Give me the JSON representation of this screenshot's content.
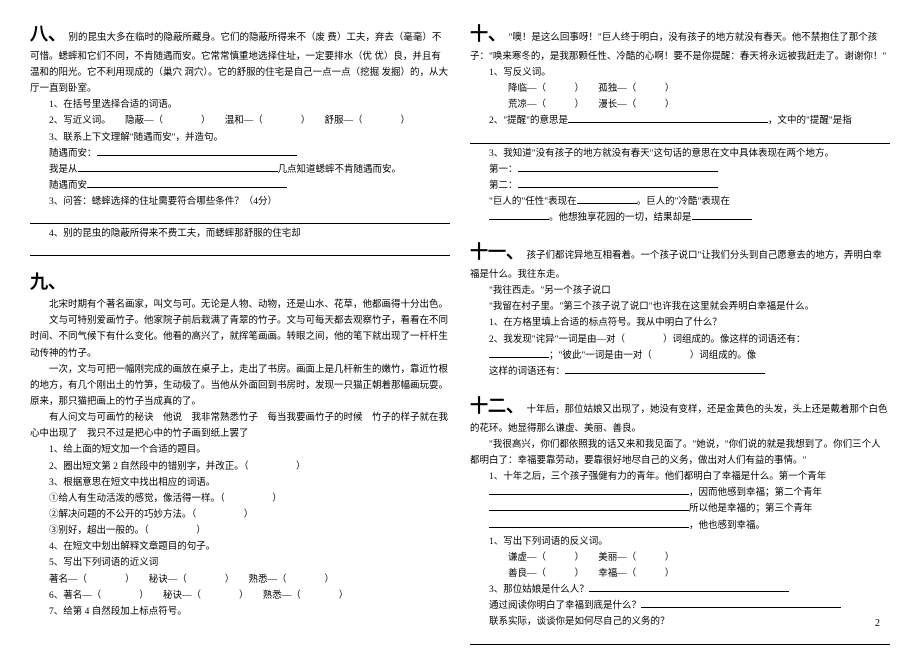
{
  "left": {
    "s8": {
      "num": "八、",
      "para": "别的昆虫大多在临时的隐蔽所藏身。它们的隐蔽所得来不（废 费）工夫，弃去（毫毫）不可惜。蟋蟀和它们不同，不肯随遇而安。它常常慎重地选择住址，一定要排水（优 优）良，并且有温和的阳光。它不利用现成的（巢穴 洞穴）。它的舒服的住宅是自己一点一点（挖掘 发掘）的，从大厅一直到卧室。",
      "q1": "1、在括号里选择合适的词语。",
      "q2": "2、写近义词。　　隐蔽—（　　　　）　　温和—（　　　　）　　舒服—（　　　　）",
      "q3": "3、联系上下文理解\"随遇而安\"，并造句。",
      "q3a": "随遇而安：",
      "q3b": "我是从",
      "q3c": "几点知道蟋蟀不肯随遇而安。",
      "q3d": "随遇而安",
      "q4": "3、问答：蟋蟀选择的住址需要符合哪些条件？（4分）",
      "q5": "4、别的昆虫的隐蔽所得来不费工夫，而蟋蟀那舒服的住宅却"
    },
    "s9": {
      "num": "九、",
      "p1": "北宋时期有个著名画家，叫文与可。无论是人物、动物，还是山水、花草，他都画得十分出色。",
      "p2": "文与可特别爱画竹子。他家院子前后栽满了青翠的竹子。文与可每天都去观察竹子，看看在不同时间、不同气候下有什么变化。他看的高兴了，就挥笔画画。转眼之间，他的笔下就出现了一杆杆生动传神的竹子。",
      "p3": "一次，文与可把一幅刚完成的画放在桌子上，走出了书房。画面上是几杆新生的嫩竹，靠近竹根的地方，有几个刚出土的竹笋，生动极了。当他从外面回到书房时，发现一只猫正朝着那幅画玩耍。原来，那只猫把画上的竹子当成真的了。",
      "p4": "有人问文与可画竹的秘诀　他说　我非常熟悉竹子　每当我要画竹子的时候　竹子的样子就在我心中出现了　我只不过是把心中的竹子画到纸上罢了",
      "q1": "1、给上面的短文加一个合适的题目。",
      "q2": "2、圈出短文第 2 自然段中的错别字，并改正。（",
      "q3": "3、根据意思在短文中找出相应的词语。",
      "q3a": "①给人有生动活泼的感觉，像活得一样。（",
      "q3b": "②解决问题的不公开的巧妙方法。（",
      "q3c": "③别好，超出一般的。（",
      "q4": "4、在短文中划出解释文章题目的句子。",
      "q5": "5、写出下列词语的近义词",
      "q5a": "著名—（　　　　）　　秘诀—（　　　　）　　熟悉—（　　　　）",
      "q6": "6、著名—（　　　　）　　秘诀—（　　　　）　　熟悉—（　　　　）",
      "q7": "7、给第 4 自然段加上标点符号。"
    }
  },
  "right": {
    "s10": {
      "num": "十、",
      "para": "\"噢！是这么回事呀！\"巨人终于明白，没有孩子的地方就没有春天。他不禁抱住了那个孩子：\"唤来寒冬的，是我那颗任性、冷酷的心啊！要不是你提醒：春天将永远被我赶走了。谢谢你！\"",
      "q1": "1、写反义词。",
      "q1a": "降临—（　　　）　　孤独—（　　　）",
      "q1b": "荒凉—（　　　）　　漫长—（　　　）",
      "q2": "2、\"提醒\"的意思是",
      "q2b": "，文中的\"提醒\"是指",
      "q3": "3、我知道\"没有孩子的地方就没有春天\"这句话的意思在文中具体表现在两个地方。",
      "q3a": "第一：",
      "q3b": "第二：",
      "q4": "\"巨人的\"任性\"表现在",
      "q4b": "。巨人的\"冷酷\"表现在",
      "q4c": "。他想独享花园的一切，结果却是"
    },
    "s11": {
      "num": "十一、",
      "para": "孩子们都诧异地互相看着。一个孩子说口\"让我们分头到自己愿意去的地方，弄明白幸福是什么。我往东走。",
      "p2": "\"我往西走。\"另一个孩子说口",
      "p3": "\"我留在村子里。\"第三个孩子说了说口\"也许我在这里就会弄明白幸福是什么。",
      "q1": "1、在方格里填上合适的标点符号。我从中明白了什么？",
      "q2": "2、我发现\"诧异\"一词是由—对（　　　　）词组成的。像这样的词语还有：",
      "q2b": "；\"彼此\"一词是由一对（　　　　）词组成的。像",
      "q2c": "这样的词语还有："
    },
    "s12": {
      "num": "十二、",
      "para": "十年后，那位姑娘又出现了，她没有变样，还是金黄色的头发，头上还是戴着那个白色的花环。她显得那么谦虚、美丽、善良。",
      "p2": "\"我很高兴，你们都依照我的话又来和我见面了。\"她说，\"你们说的就是我想到了。你们三个人都明白了：幸福要靠劳动，要靠很好地尽自己的义务，做出对人们有益的事情。\"",
      "q1": "1、十年之后，三个孩子强健有力的青年。他们都明白了幸福是什么。第一个青年",
      "q1b": "，因而他感到幸福；第二个青年",
      "q1c": "所以他是幸福的；第三个青年",
      "q1d": "，他也感到幸福。",
      "q2": "1、写出下列词语的反义词。",
      "q2a": "谦虚—（　　　）　　美丽—（　　　）",
      "q2b": "善良—（　　　）　　幸福—（　　　）",
      "q3": "3、那位姑娘是什么人？",
      "q4": "通过阅读你明白了幸福到底是什么？",
      "q5": "联系实际，谈谈你是如何尽自己的义务的？"
    }
  },
  "pageNum": "2"
}
